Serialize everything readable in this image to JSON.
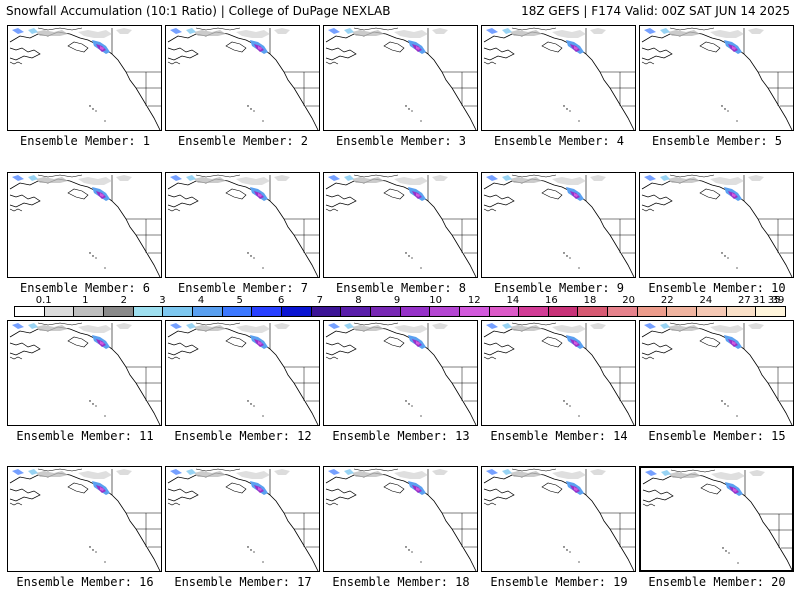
{
  "header": {
    "title": "Snowfall Accumulation (10:1 Ratio) | College of DuPage NEXLAB",
    "run_info": "18Z GEFS | F174 Valid: 00Z SAT JUN 14 2025"
  },
  "legend": {
    "labels": [
      "0.1",
      "1",
      "2",
      "3",
      "4",
      "5",
      "6",
      "7",
      "8",
      "9",
      "10",
      "12",
      "14",
      "16",
      "18",
      "20",
      "22",
      "24",
      "27",
      "31",
      "35",
      "39"
    ],
    "colors": [
      "#ffffff",
      "#dcdcdc",
      "#bebebe",
      "#8a8a8a",
      "#9fe0f0",
      "#7ec8f0",
      "#5aa0f0",
      "#3c78ff",
      "#2840ff",
      "#0a14d2",
      "#3c1496",
      "#5a1eaa",
      "#7828b4",
      "#9632c8",
      "#b446d2",
      "#d25adc",
      "#dc5ac8",
      "#d23c96",
      "#c83278",
      "#d75a73",
      "#e6828c",
      "#ec9c8c",
      "#f0b4a0",
      "#f5c8b4",
      "#fae0c8",
      "#fff5dc"
    ],
    "selected_color": "#fff5dc"
  },
  "members": [
    {
      "label": "Ensemble Member: 1"
    },
    {
      "label": "Ensemble Member: 2"
    },
    {
      "label": "Ensemble Member: 3"
    },
    {
      "label": "Ensemble Member: 4"
    },
    {
      "label": "Ensemble Member: 5"
    },
    {
      "label": "Ensemble Member: 6"
    },
    {
      "label": "Ensemble Member: 7"
    },
    {
      "label": "Ensemble Member: 8"
    },
    {
      "label": "Ensemble Member: 9"
    },
    {
      "label": "Ensemble Member: 10"
    },
    {
      "label": "Ensemble Member: 11"
    },
    {
      "label": "Ensemble Member: 12"
    },
    {
      "label": "Ensemble Member: 13"
    },
    {
      "label": "Ensemble Member: 14"
    },
    {
      "label": "Ensemble Member: 15"
    },
    {
      "label": "Ensemble Member: 16"
    },
    {
      "label": "Ensemble Member: 17"
    },
    {
      "label": "Ensemble Member: 18"
    },
    {
      "label": "Ensemble Member: 19"
    },
    {
      "label": "Ensemble Member: 20"
    }
  ],
  "selected_member_index": 19
}
